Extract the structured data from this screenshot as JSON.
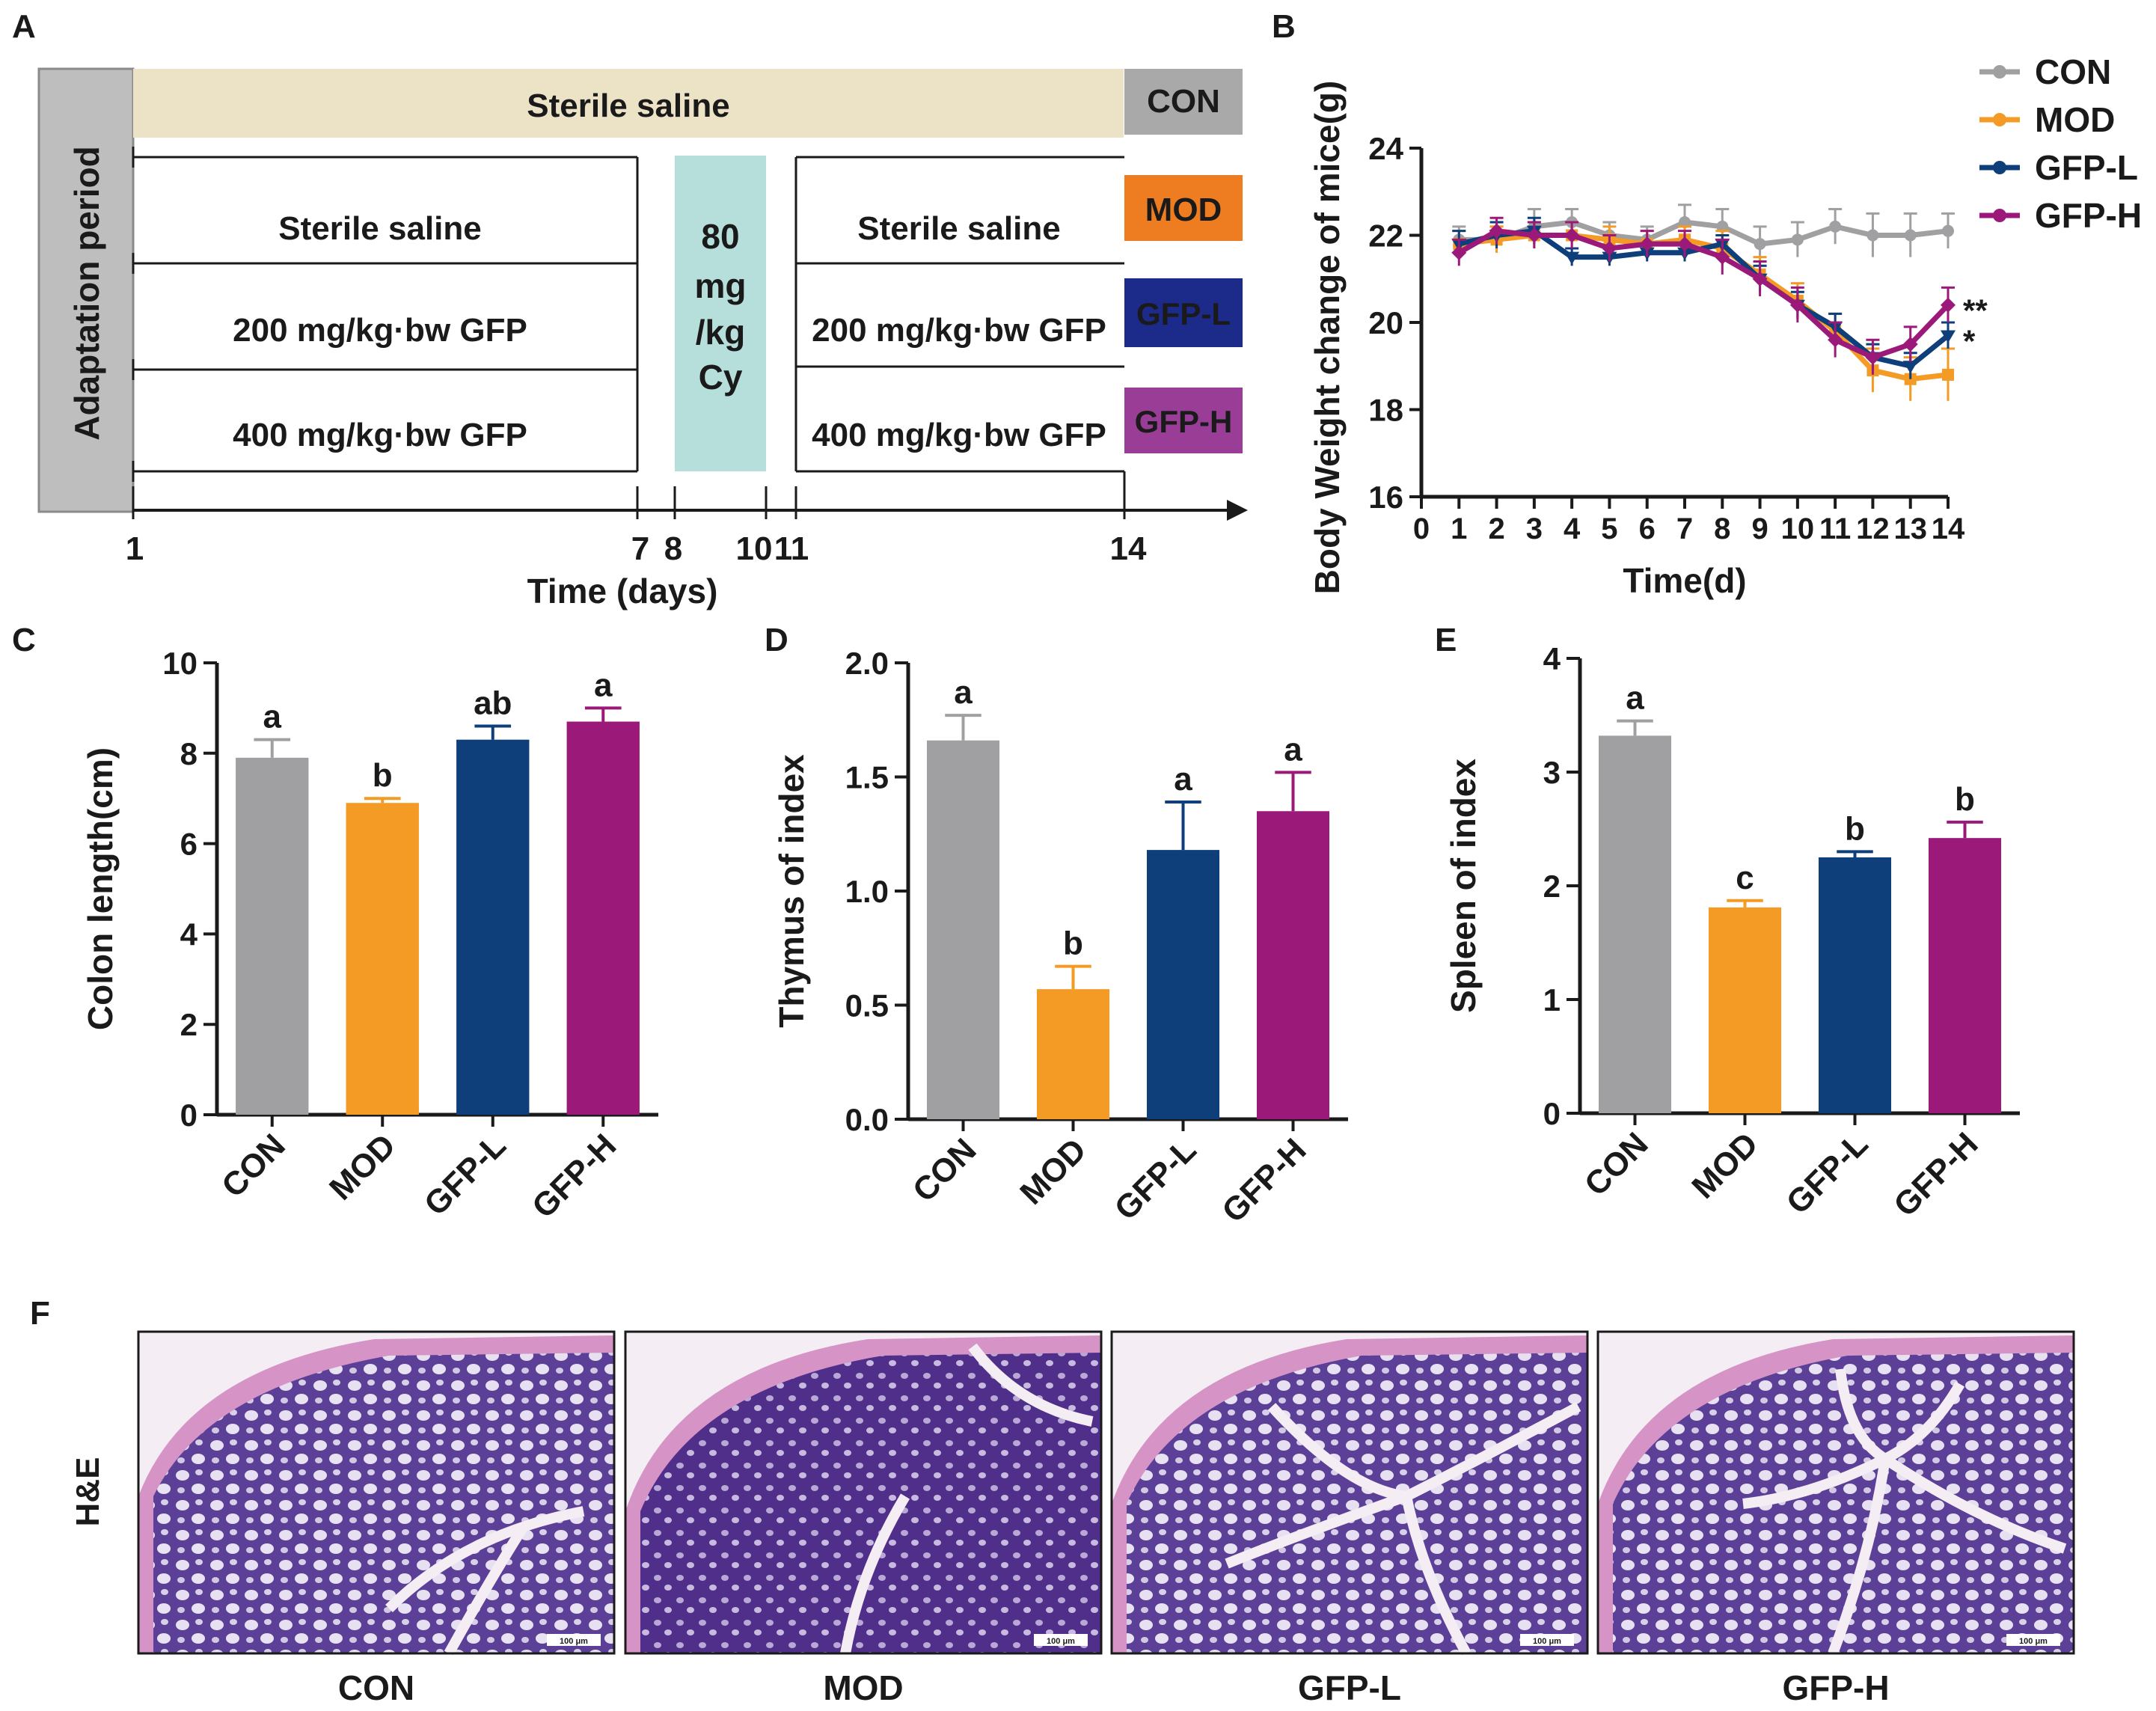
{
  "panels": {
    "a": "A",
    "b": "B",
    "c": "C",
    "d": "D",
    "e": "E",
    "f": "F"
  },
  "colors": {
    "CON": "#a0a0a3",
    "MOD": "#f39b24",
    "GFP-L": "#0e3f7a",
    "GFP-H": "#9b1a79",
    "MOD_box": "#ee7d22",
    "GFP-L_box": "#1c2a8a",
    "GFP-H_box": "#9a3d97",
    "saline_band": "#ece3c7",
    "cy_band": "#b6dedb",
    "adapt_box": "#bebebe"
  },
  "design": {
    "adaptation": "Adaptation period",
    "saline_top": "Sterile  saline",
    "saline_left": "Sterile  saline",
    "saline_right": "Sterile  saline",
    "dose200_left": "200 mg/kg·bw GFP",
    "dose400_left": "400 mg/kg·bw GFP",
    "dose200_right": "200 mg/kg·bw GFP",
    "dose400_right": "400 mg/kg·bw GFP",
    "cy_lines": [
      "80",
      "mg",
      "/kg",
      "Cy"
    ],
    "groups": [
      "CON",
      "MOD",
      "GFP-L",
      "GFP-H"
    ],
    "ticks": [
      "1",
      "7",
      "8",
      "10",
      "11",
      "14"
    ],
    "xlabel": "Time (days)"
  },
  "histology": {
    "row_label": "H&E",
    "labels": [
      "CON",
      "MOD",
      "GFP-L",
      "GFP-H"
    ],
    "scale_bar": "100 μm"
  },
  "chart_data": [
    {
      "id": "B",
      "type": "line",
      "title": "",
      "xlabel": "Time(d)",
      "ylabel": "Body Weight change of mice(g)",
      "xlim": [
        0,
        14
      ],
      "ylim": [
        16,
        24
      ],
      "x_ticks": [
        "0",
        "1",
        "2",
        "3",
        "4",
        "5",
        "6",
        "7",
        "8",
        "9",
        "10",
        "11",
        "12",
        "13",
        "14"
      ],
      "y_ticks": [
        "16",
        "18",
        "20",
        "22",
        "24"
      ],
      "x": [
        1,
        2,
        3,
        4,
        5,
        6,
        7,
        8,
        9,
        10,
        11,
        12,
        13,
        14
      ],
      "legend": [
        "CON",
        "MOD",
        "GFP-L",
        "GFP-H"
      ],
      "legend_position": "top-right",
      "series": [
        {
          "name": "CON",
          "values": [
            21.9,
            21.9,
            22.2,
            22.3,
            22.0,
            21.9,
            22.3,
            22.2,
            21.8,
            21.9,
            22.2,
            22.0,
            22.0,
            22.1
          ],
          "err": [
            0.3,
            0.3,
            0.4,
            0.3,
            0.3,
            0.3,
            0.4,
            0.4,
            0.4,
            0.4,
            0.4,
            0.5,
            0.5,
            0.4
          ]
        },
        {
          "name": "MOD",
          "values": [
            21.8,
            21.9,
            22.0,
            22.0,
            21.9,
            21.8,
            21.9,
            21.7,
            21.1,
            20.5,
            19.8,
            18.9,
            18.7,
            18.8
          ],
          "err": [
            0.3,
            0.3,
            0.3,
            0.3,
            0.3,
            0.3,
            0.3,
            0.4,
            0.4,
            0.4,
            0.4,
            0.5,
            0.5,
            0.6
          ]
        },
        {
          "name": "GFP-L",
          "values": [
            21.8,
            22.0,
            22.1,
            21.5,
            21.5,
            21.6,
            21.6,
            21.8,
            21.0,
            20.4,
            19.9,
            19.2,
            19.0,
            19.7
          ],
          "err": [
            0.3,
            0.3,
            0.3,
            0.2,
            0.2,
            0.2,
            0.2,
            0.2,
            0.3,
            0.3,
            0.3,
            0.3,
            0.3,
            0.3
          ]
        },
        {
          "name": "GFP-H",
          "values": [
            21.6,
            22.1,
            22.0,
            22.0,
            21.7,
            21.8,
            21.8,
            21.5,
            21.0,
            20.4,
            19.6,
            19.2,
            19.5,
            20.4
          ],
          "err": [
            0.3,
            0.3,
            0.3,
            0.3,
            0.3,
            0.3,
            0.3,
            0.4,
            0.4,
            0.4,
            0.4,
            0.4,
            0.4,
            0.4
          ]
        }
      ],
      "annotations": [
        {
          "series": "GFP-H",
          "text": "**"
        },
        {
          "series": "GFP-L",
          "text": "*"
        }
      ]
    },
    {
      "id": "C",
      "type": "bar",
      "title": "",
      "ylabel": "Colon length(cm)",
      "xlabel": "",
      "categories": [
        "CON",
        "MOD",
        "GFP-L",
        "GFP-H"
      ],
      "values": [
        7.9,
        6.9,
        8.3,
        8.7
      ],
      "err": [
        0.4,
        0.1,
        0.3,
        0.3
      ],
      "labels": [
        "a",
        "b",
        "ab",
        "a"
      ],
      "ylim": [
        0,
        10
      ],
      "y_ticks": [
        "0",
        "2",
        "4",
        "6",
        "8",
        "10"
      ]
    },
    {
      "id": "D",
      "type": "bar",
      "title": "",
      "ylabel": "Thymus of index",
      "xlabel": "",
      "categories": [
        "CON",
        "MOD",
        "GFP-L",
        "GFP-H"
      ],
      "values": [
        1.66,
        0.57,
        1.18,
        1.35
      ],
      "err": [
        0.11,
        0.1,
        0.21,
        0.17
      ],
      "labels": [
        "a",
        "b",
        "a",
        "a"
      ],
      "ylim": [
        0,
        2.0
      ],
      "y_ticks": [
        "0.0",
        "0.5",
        "1.0",
        "1.5",
        "2.0"
      ]
    },
    {
      "id": "E",
      "type": "bar",
      "title": "",
      "ylabel": "Spleen of index",
      "xlabel": "",
      "categories": [
        "CON",
        "MOD",
        "GFP-L",
        "GFP-H"
      ],
      "values": [
        3.32,
        1.81,
        2.25,
        2.42
      ],
      "err": [
        0.13,
        0.06,
        0.05,
        0.14
      ],
      "labels": [
        "a",
        "c",
        "b",
        "b"
      ],
      "ylim": [
        0,
        4
      ],
      "y_ticks": [
        "0",
        "1",
        "2",
        "3",
        "4"
      ]
    }
  ]
}
